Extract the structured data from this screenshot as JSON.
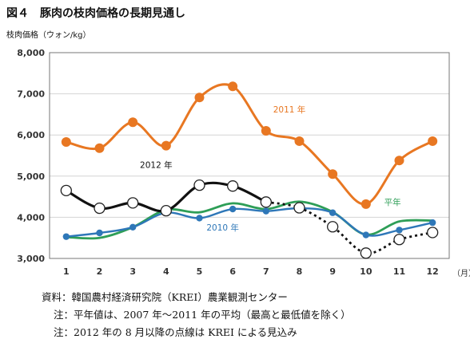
{
  "figure": {
    "title": "図４　豚肉の枝肉価格の長期見通し",
    "ylabel": "枝肉価格（ウォン/kg）",
    "xunit": "（月）",
    "notes": [
      "資料：韓国農村経済研究院（KREI）農業観測センター",
      "注：平年値は、2007 年～2011 年の平均（最高と最低値を除く）",
      "注：2012 年の 8 月以降の点線は KREI による見込み"
    ]
  },
  "chart_data": {
    "type": "line",
    "x": [
      1,
      2,
      3,
      4,
      5,
      6,
      7,
      8,
      9,
      10,
      11,
      12
    ],
    "xticks": [
      "1",
      "2",
      "3",
      "4",
      "5",
      "6",
      "7",
      "8",
      "9",
      "10",
      "11",
      "12"
    ],
    "yticks": [
      "3,000",
      "4,000",
      "5,000",
      "6,000",
      "7,000",
      "8,000"
    ],
    "ylim": [
      3000,
      8000
    ],
    "series": [
      {
        "name": "2011 年",
        "color": "#E87722",
        "values": [
          5830,
          5680,
          6310,
          5740,
          6910,
          7180,
          6100,
          5850,
          5050,
          4320,
          5380,
          5850
        ]
      },
      {
        "name": "2012 年",
        "color": "#111111",
        "values": [
          4650,
          4220,
          4350,
          4160,
          4780,
          4760,
          4370,
          4230,
          3770,
          3130,
          3460,
          3630
        ],
        "projected_from_month": 8
      },
      {
        "name": "平年",
        "color": "#2E9E57",
        "values": [
          3520,
          3500,
          3760,
          4180,
          4120,
          4340,
          4200,
          4380,
          4130,
          3580,
          3900,
          3920
        ]
      },
      {
        "name": "2010 年",
        "color": "#2E77B8",
        "values": [
          3530,
          3620,
          3760,
          4110,
          3980,
          4200,
          4150,
          4220,
          4110,
          3570,
          3690,
          3870
        ]
      }
    ]
  }
}
